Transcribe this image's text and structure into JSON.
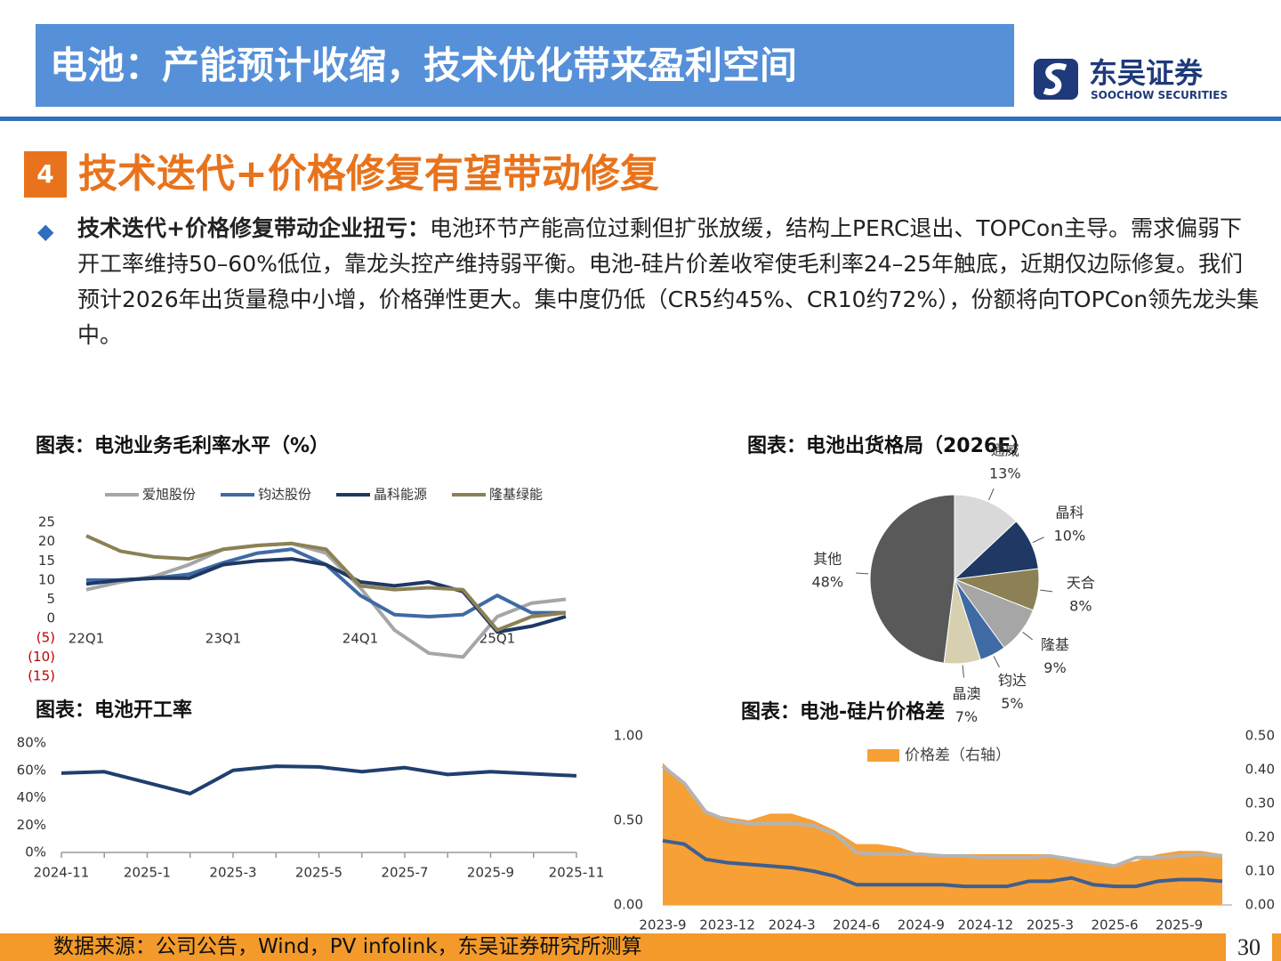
{
  "header": {
    "title": "电池：产能预计收缩，技术优化带来盈利空间",
    "logo_cn": "东吴证券",
    "logo_en": "SOOCHOW SECURITIES"
  },
  "section": {
    "number": "4",
    "title": "技术迭代+价格修复有望带动修复"
  },
  "paragraph": {
    "lead": "技术迭代+价格修复带动企业扭亏：",
    "body": "电池环节产能高位过剩但扩张放缓，结构上PERC退出、TOPCon主导。需求偏弱下开工率维持50–60%低位，靠龙头控产维持弱平衡。电池-硅片价差收窄使毛利率24–25年触底，近期仅边际修复。我们预计2026年出货量稳中小增，价格弹性更大。集中度仍低（CR5约45%、CR10约72%），份额将向TOPCon领先龙头集中。"
  },
  "chart_data": [
    {
      "type": "line",
      "title": "图表：电池业务毛利率水平（%）",
      "categories": [
        "22Q1",
        null,
        null,
        null,
        "23Q1",
        null,
        null,
        null,
        "24Q1",
        null,
        null,
        null,
        "25Q1",
        null,
        null
      ],
      "series": [
        {
          "name": "爱旭股份",
          "color": "#a6a6a6",
          "values": [
            7.5,
            9.5,
            11,
            14,
            18,
            19,
            19.5,
            17,
            8,
            -3,
            -9,
            -10,
            0.5,
            4,
            5
          ]
        },
        {
          "name": "钧达股份",
          "color": "#3f6aa3",
          "values": [
            10,
            10,
            10.5,
            11.5,
            14.5,
            17,
            18,
            14,
            6,
            1,
            0.5,
            1,
            6,
            1.5,
            1.5
          ]
        },
        {
          "name": "晶科能源",
          "color": "#1f3864",
          "values": [
            9,
            10,
            10.5,
            10.5,
            14,
            15,
            15.5,
            14,
            9.5,
            8.5,
            9.5,
            7,
            -3.5,
            -2,
            0.5
          ]
        },
        {
          "name": "隆基绿能",
          "color": "#8b8155",
          "values": [
            21.5,
            17.5,
            16,
            15.5,
            18,
            19,
            19.5,
            18,
            8.5,
            7.5,
            8,
            7.5,
            -3,
            0.5,
            1.5
          ]
        }
      ],
      "ylim": [
        -15,
        25
      ],
      "yticks": [
        25,
        20,
        15,
        10,
        5,
        0,
        {
          "value": -5,
          "label": "(5)"
        },
        {
          "value": -10,
          "label": "(10)"
        },
        {
          "value": -15,
          "label": "(15)"
        }
      ]
    },
    {
      "type": "pie",
      "title": "图表：电池出货格局（2026E）",
      "categories": [
        "通威",
        "晶科",
        "天合",
        "隆基",
        "钧达",
        "晶澳",
        "其他"
      ],
      "values": [
        13,
        10,
        8,
        9,
        5,
        7,
        48
      ],
      "value_labels": [
        "13%",
        "10%",
        "8%",
        "9%",
        "5%",
        "7%",
        "48%"
      ],
      "colors": [
        "#d9d9d9",
        "#1f3864",
        "#8b8155",
        "#a6a6a6",
        "#3f6aa3",
        "#d6d0b0",
        "#595959"
      ]
    },
    {
      "type": "line",
      "title": "图表：电池开工率",
      "categories": [
        "2024-11",
        null,
        "2025-1",
        null,
        "2025-3",
        null,
        "2025-5",
        null,
        "2025-7",
        null,
        "2025-9",
        null,
        "2025-11"
      ],
      "series": [
        {
          "color": "#1f3f6e",
          "values": [
            58,
            59,
            51,
            43,
            60,
            63,
            62.5,
            59,
            62,
            57,
            59,
            57.5,
            56
          ]
        }
      ],
      "ylim": [
        0,
        80
      ],
      "yticks": [
        {
          "value": 0,
          "label": "0%"
        },
        {
          "value": 20,
          "label": "20%"
        },
        {
          "value": 40,
          "label": "40%"
        },
        {
          "value": 60,
          "label": "60%"
        },
        {
          "value": 80,
          "label": "80%"
        }
      ]
    },
    {
      "type": "combo",
      "title": "图表：电池-硅片价格差",
      "categories": [
        "2023-9",
        null,
        null,
        "2023-12",
        null,
        null,
        "2024-3",
        null,
        null,
        "2024-6",
        null,
        null,
        "2024-9",
        null,
        null,
        "2024-12",
        null,
        null,
        "2025-3",
        null,
        null,
        "2025-6",
        null,
        null,
        "2025-9",
        null,
        null
      ],
      "series": [
        {
          "name": "价格差（右轴）",
          "type": "area",
          "axis": "y2",
          "color": "#f7a035",
          "values": [
            0.42,
            0.36,
            0.27,
            0.26,
            0.25,
            0.27,
            0.27,
            0.25,
            0.22,
            0.18,
            0.18,
            0.17,
            0.15,
            0.15,
            0.15,
            0.15,
            0.15,
            0.15,
            0.15,
            0.13,
            0.12,
            0.12,
            0.13,
            0.15,
            0.16,
            0.16,
            0.15
          ]
        },
        {
          "type": "line",
          "color": "#b4b4b4",
          "values": [
            0.82,
            0.72,
            0.55,
            0.5,
            0.48,
            0.48,
            0.48,
            0.47,
            0.42,
            0.31,
            0.3,
            0.3,
            0.3,
            0.29,
            0.29,
            0.28,
            0.28,
            0.28,
            0.29,
            0.27,
            0.25,
            0.23,
            0.28,
            0.28,
            0.29,
            0.3,
            0.29
          ]
        },
        {
          "type": "line",
          "color": "#3f5f8f",
          "values": [
            0.38,
            0.36,
            0.27,
            0.25,
            0.24,
            0.23,
            0.22,
            0.2,
            0.17,
            0.12,
            0.12,
            0.12,
            0.12,
            0.12,
            0.11,
            0.11,
            0.11,
            0.14,
            0.14,
            0.16,
            0.12,
            0.11,
            0.11,
            0.14,
            0.15,
            0.15,
            0.14
          ]
        }
      ],
      "ylim": [
        0,
        1
      ],
      "yticks": [
        {
          "value": 0,
          "label": "0.00"
        },
        {
          "value": 0.5,
          "label": "0.50"
        },
        {
          "value": 1,
          "label": "1.00"
        }
      ],
      "y2lim": [
        0,
        0.5
      ],
      "y2ticks": [
        {
          "value": 0,
          "label": "0.00"
        },
        {
          "value": 0.1,
          "label": "0.10"
        },
        {
          "value": 0.2,
          "label": "0.20"
        },
        {
          "value": 0.3,
          "label": "0.30"
        },
        {
          "value": 0.4,
          "label": "0.40"
        },
        {
          "value": 0.5,
          "label": "0.50"
        }
      ]
    }
  ],
  "footer": {
    "source": "数据来源：公司公告，Wind，PV infolink，东吴证券研究所测算",
    "page": "30"
  }
}
